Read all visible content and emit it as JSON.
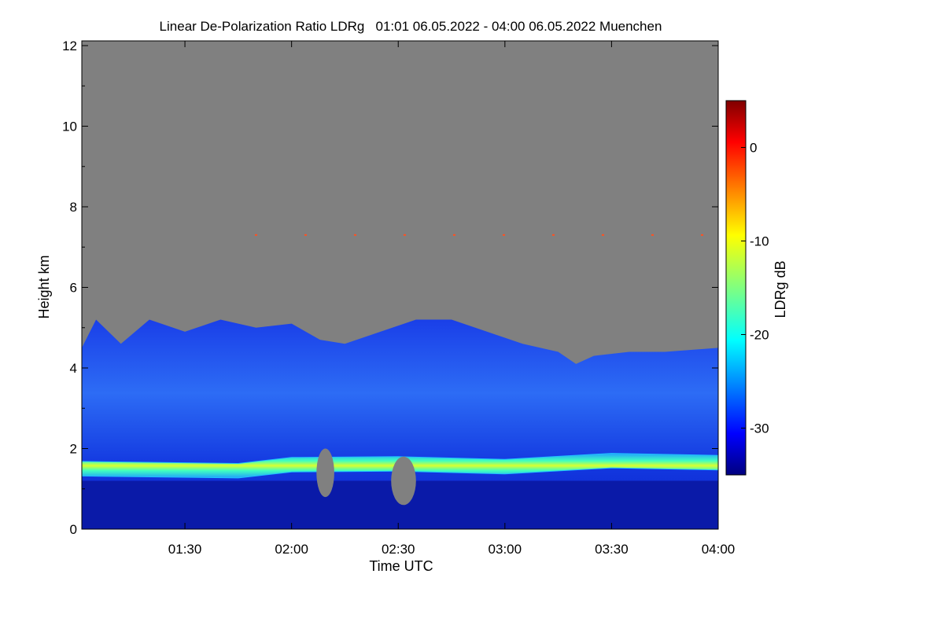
{
  "chart_data": {
    "type": "heatmap",
    "title": "Linear De-Polarization Ratio LDRg   01:01 06.05.2022 - 04:00 06.05.2022 Muenchen",
    "xlabel": "Time UTC",
    "ylabel": "Height km",
    "x_range": [
      "01:01",
      "04:00"
    ],
    "y_range": [
      0,
      12
    ],
    "x_ticks": [
      {
        "value": "01:30",
        "label": "01:30"
      },
      {
        "value": "02:00",
        "label": "02:00"
      },
      {
        "value": "02:30",
        "label": "02:30"
      },
      {
        "value": "03:00",
        "label": "03:00"
      },
      {
        "value": "03:30",
        "label": "03:30"
      },
      {
        "value": "04:00",
        "label": "04:00"
      }
    ],
    "y_ticks": [
      0,
      2,
      4,
      6,
      8,
      10,
      12
    ],
    "colorbar": {
      "label": "LDRg dB",
      "range": [
        -35,
        5
      ],
      "ticks": [
        0,
        -10,
        -20,
        -30
      ],
      "colormap": "jet"
    },
    "colors": {
      "no_data": "#808080",
      "background": "#ffffff"
    },
    "features": {
      "signal_top_km": [
        {
          "time": "01:01",
          "km": 4.5
        },
        {
          "time": "01:05",
          "km": 5.2
        },
        {
          "time": "01:12",
          "km": 4.6
        },
        {
          "time": "01:20",
          "km": 5.2
        },
        {
          "time": "01:30",
          "km": 4.9
        },
        {
          "time": "01:40",
          "km": 5.2
        },
        {
          "time": "01:50",
          "km": 5.0
        },
        {
          "time": "02:00",
          "km": 5.1
        },
        {
          "time": "02:08",
          "km": 4.7
        },
        {
          "time": "02:15",
          "km": 4.6
        },
        {
          "time": "02:25",
          "km": 4.9
        },
        {
          "time": "02:35",
          "km": 5.2
        },
        {
          "time": "02:45",
          "km": 5.2
        },
        {
          "time": "02:55",
          "km": 4.9
        },
        {
          "time": "03:05",
          "km": 4.6
        },
        {
          "time": "03:15",
          "km": 4.4
        },
        {
          "time": "03:20",
          "km": 4.1
        },
        {
          "time": "03:25",
          "km": 4.3
        },
        {
          "time": "03:35",
          "km": 4.4
        },
        {
          "time": "03:45",
          "km": 4.4
        },
        {
          "time": "04:00",
          "km": 4.5
        }
      ],
      "depolarization_layer_km": [
        {
          "time": "01:01",
          "km": 1.5
        },
        {
          "time": "01:45",
          "km": 1.45
        },
        {
          "time": "02:00",
          "km": 1.6
        },
        {
          "time": "02:30",
          "km": 1.62
        },
        {
          "time": "03:00",
          "km": 1.55
        },
        {
          "time": "03:30",
          "km": 1.7
        },
        {
          "time": "04:00",
          "km": 1.65
        }
      ],
      "no_data_gaps": [
        {
          "time_start": "02:07",
          "time_end": "02:12",
          "km_bottom": 0.8,
          "km_top": 2.0
        },
        {
          "time_start": "02:28",
          "time_end": "02:35",
          "km_bottom": 0.6,
          "km_top": 1.8
        }
      ],
      "high_layer_km": 7.3
    }
  }
}
